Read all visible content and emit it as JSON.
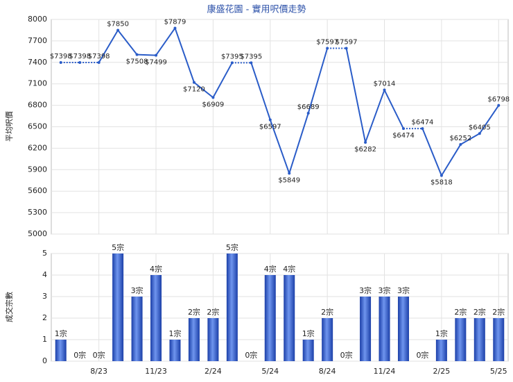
{
  "chart_data": [
    {
      "type": "line",
      "title": "康盛花園 - 實用呎價走勢",
      "y_label": "平均呎價",
      "values": [
        7398,
        7398,
        7398,
        7850,
        7508,
        7499,
        7879,
        7120,
        6909,
        7395,
        7395,
        6597,
        5849,
        6689,
        7597,
        7597,
        6282,
        7014,
        6474,
        6474,
        5818,
        6252,
        6405,
        6798
      ],
      "value_labels": [
        "$7398",
        "$7398",
        "$7398",
        "$7850",
        "$7508",
        "$7499",
        "$7879",
        "$7120",
        "$6909",
        "$7395",
        "$7395",
        "$6597",
        "$5849",
        "$6689",
        "$7597",
        "$7597",
        "$6282",
        "$7014",
        "$6474",
        "$6474",
        "$5818",
        "$6252",
        "$6405",
        "$6798"
      ],
      "color": "#2a5cc8",
      "ylim": [
        5000,
        8000
      ],
      "yticks": [
        5000,
        5300,
        5600,
        5900,
        6200,
        6500,
        6800,
        7100,
        7400,
        7700,
        8000
      ],
      "grid": true
    },
    {
      "type": "bar",
      "y_label": "成交宗數",
      "categories": [
        null,
        null,
        "8/23",
        null,
        null,
        "11/23",
        null,
        null,
        "2/24",
        null,
        null,
        "5/24",
        null,
        null,
        "8/24",
        null,
        null,
        "11/24",
        null,
        null,
        "2/25",
        null,
        null,
        "5/25"
      ],
      "values": [
        1,
        0,
        0,
        5,
        3,
        4,
        1,
        2,
        2,
        5,
        0,
        4,
        4,
        1,
        2,
        0,
        3,
        3,
        3,
        0,
        1,
        2,
        2,
        2
      ],
      "value_labels": [
        "1宗",
        "0宗",
        "0宗",
        "5宗",
        "3宗",
        "4宗",
        "1宗",
        "2宗",
        "2宗",
        "5宗",
        "0宗",
        "4宗",
        "4宗",
        "1宗",
        "2宗",
        "0宗",
        "3宗",
        "3宗",
        "3宗",
        "0宗",
        "1宗",
        "2宗",
        "2宗",
        "2宗"
      ],
      "color": "#2e58d0",
      "ylim": [
        0,
        5
      ],
      "yticks": [
        0,
        1,
        2,
        3,
        4,
        5
      ],
      "grid": true
    }
  ]
}
